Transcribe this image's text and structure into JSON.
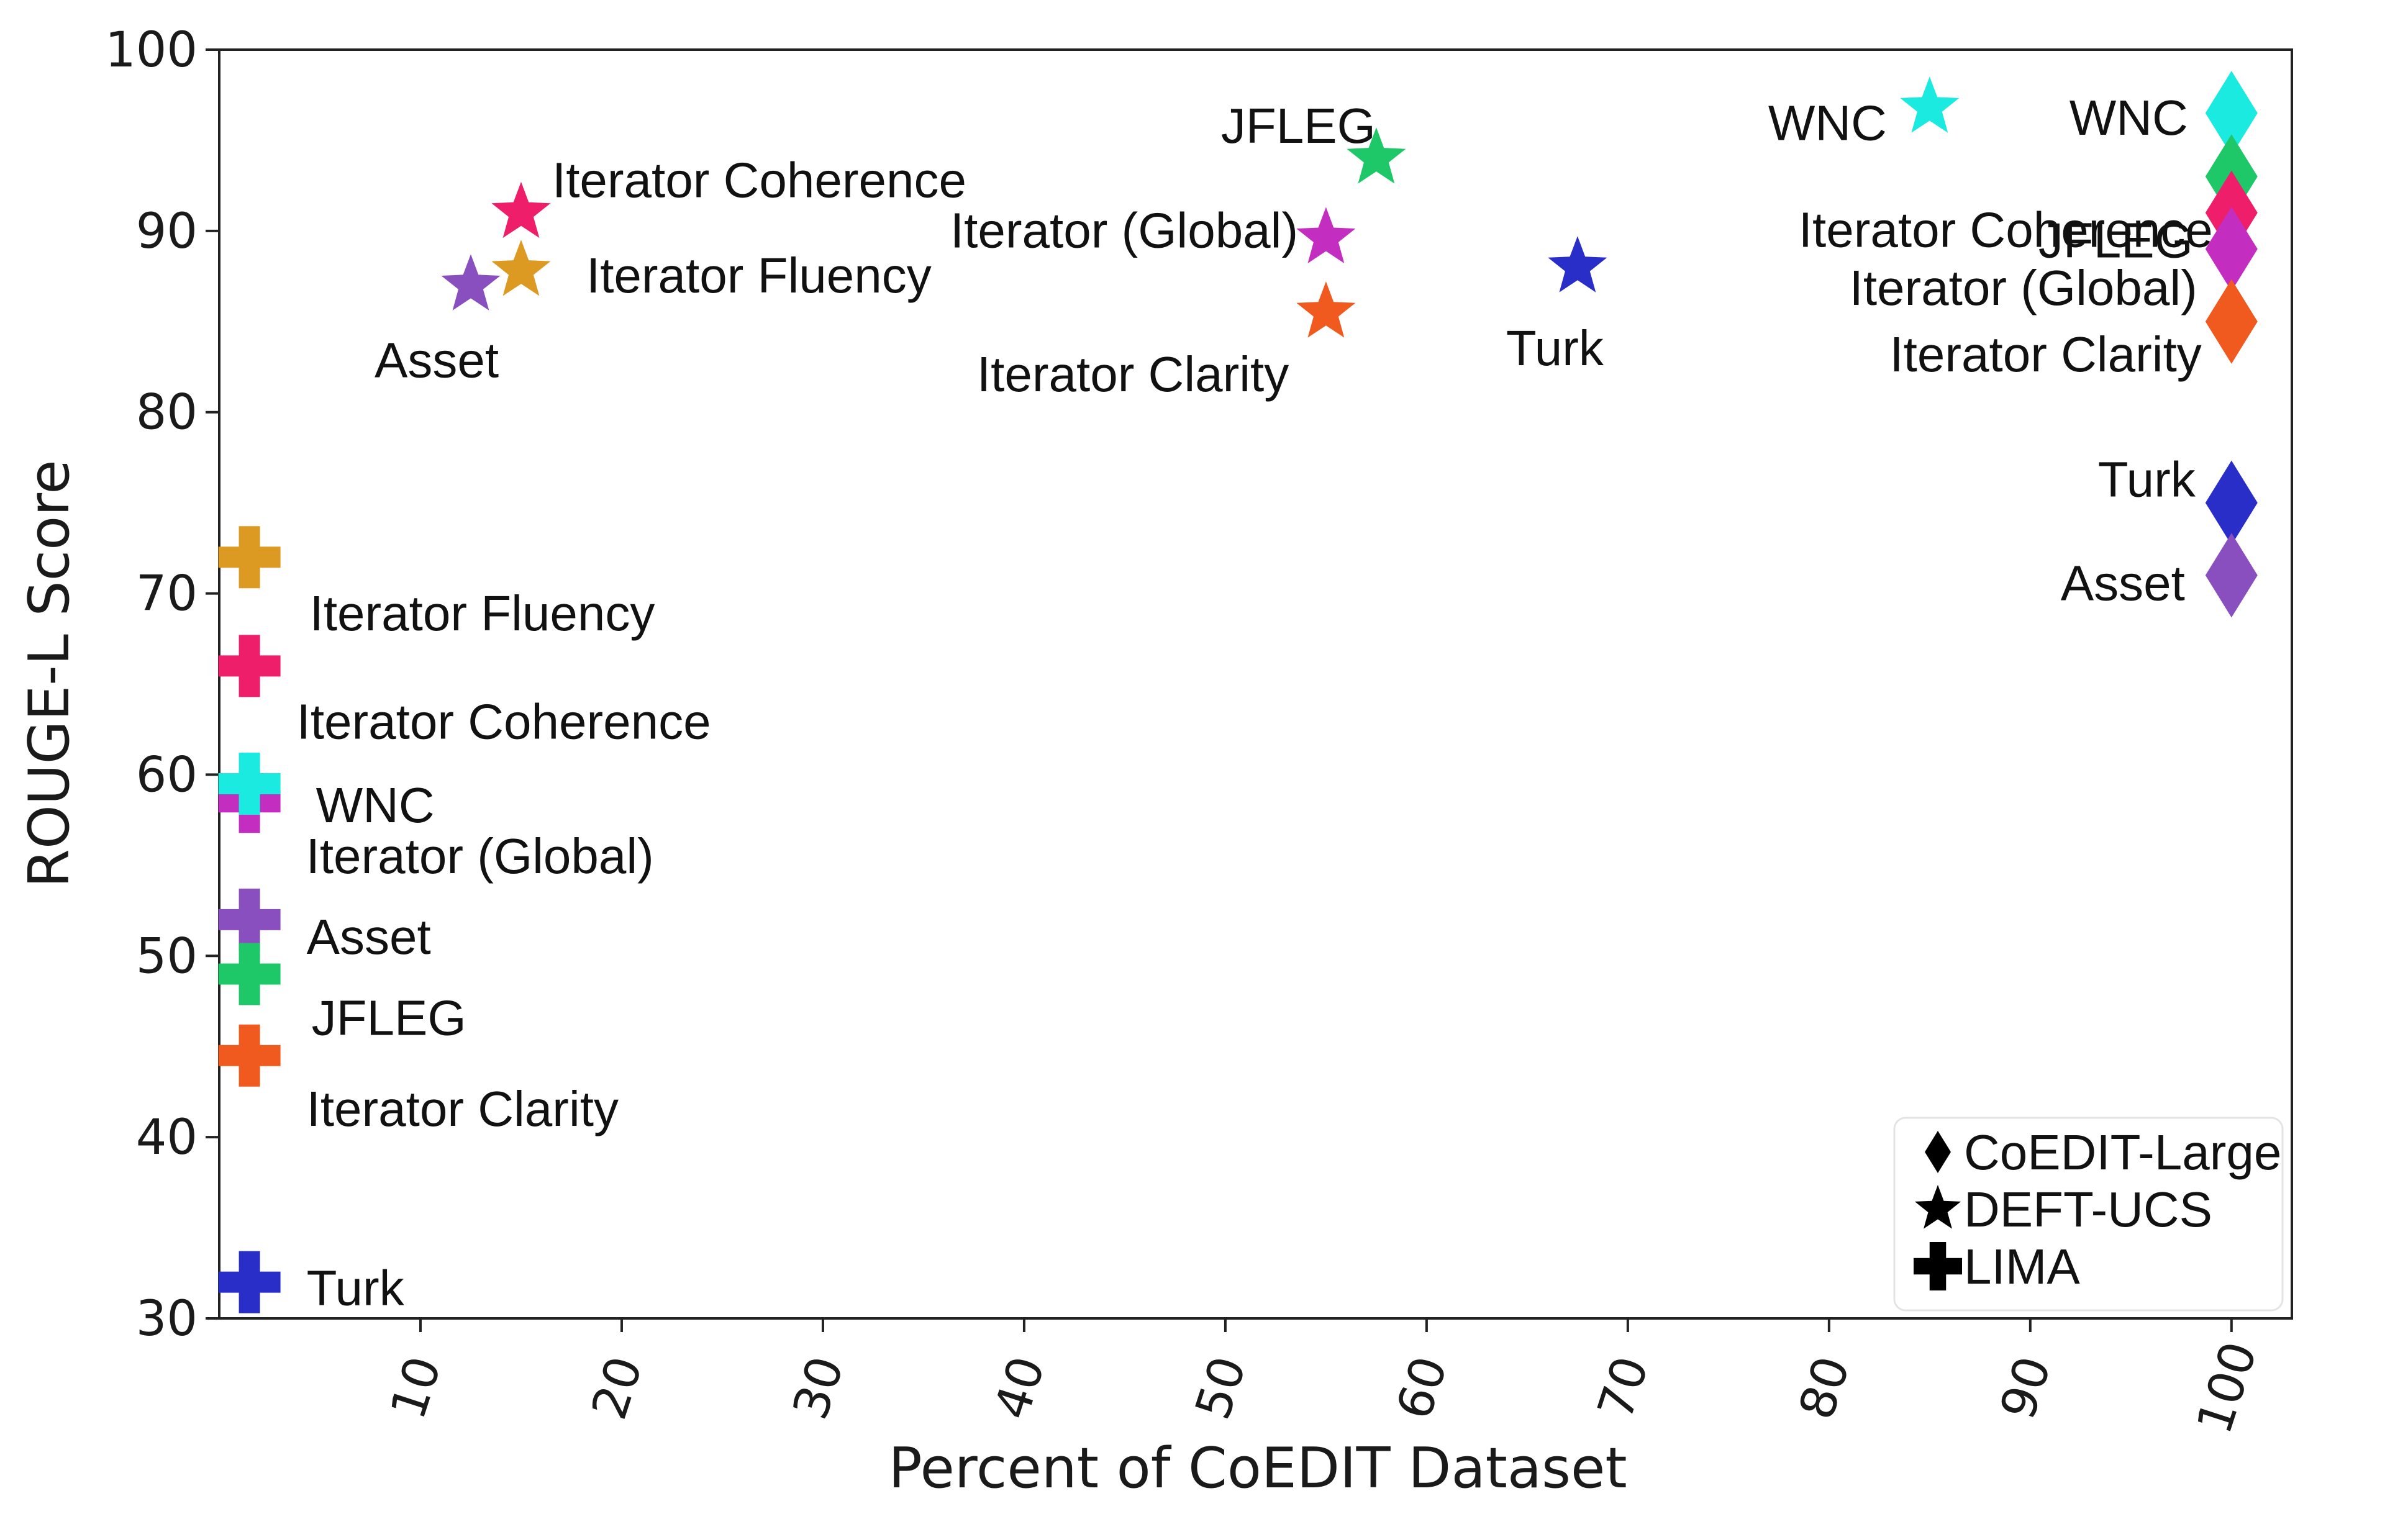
{
  "chart_data": {
    "type": "scatter",
    "title": "",
    "xlabel": "Percent of CoEDIT Dataset",
    "ylabel": "ROUGE-L Score",
    "xlim": [
      0,
      103
    ],
    "ylim": [
      30,
      100
    ],
    "xticks": [
      10,
      20,
      30,
      40,
      50,
      60,
      70,
      80,
      90,
      100
    ],
    "yticks": [
      30,
      40,
      50,
      60,
      70,
      80,
      90,
      100
    ],
    "colors": {
      "Asset": "#8a4fbf",
      "Iterator Coherence": "#ee1e6b",
      "Iterator Fluency": "#dd9a22",
      "JFLEG": "#1ec868",
      "Iterator (Global)": "#c42ec0",
      "Iterator Clarity": "#f05a1e",
      "Turk": "#2a2ec8",
      "WNC": "#1aeae0"
    },
    "series": [
      {
        "name": "CoEDIT-Large",
        "marker": "diamond",
        "points": [
          {
            "label": "WNC",
            "x": 100,
            "y": 96.5
          },
          {
            "label": "JFLEG",
            "x": 100,
            "y": 93
          },
          {
            "label": "Iterator Coherence",
            "x": 100,
            "y": 91
          },
          {
            "label": "Iterator (Global)",
            "x": 100,
            "y": 89
          },
          {
            "label": "Iterator Clarity",
            "x": 100,
            "y": 85
          },
          {
            "label": "Turk",
            "x": 100,
            "y": 75
          },
          {
            "label": "Asset",
            "x": 100,
            "y": 71
          }
        ]
      },
      {
        "name": "DEFT-UCS",
        "marker": "star",
        "points": [
          {
            "label": "Asset",
            "x": 12.5,
            "y": 87
          },
          {
            "label": "Iterator Coherence",
            "x": 15,
            "y": 91
          },
          {
            "label": "Iterator Fluency",
            "x": 15,
            "y": 87.8
          },
          {
            "label": "JFLEG",
            "x": 57.5,
            "y": 94
          },
          {
            "label": "Iterator (Global)",
            "x": 55,
            "y": 89.6
          },
          {
            "label": "Iterator Clarity",
            "x": 55,
            "y": 85.5
          },
          {
            "label": "Turk",
            "x": 67.5,
            "y": 88
          },
          {
            "label": "WNC",
            "x": 85,
            "y": 96.8
          }
        ]
      },
      {
        "name": "LIMA",
        "marker": "plus",
        "points": [
          {
            "label": "Iterator Fluency",
            "x": 1.5,
            "y": 72
          },
          {
            "label": "Iterator Coherence",
            "x": 1.5,
            "y": 66
          },
          {
            "label": "Iterator (Global)",
            "x": 1.5,
            "y": 58.5
          },
          {
            "label": "WNC",
            "x": 1.5,
            "y": 59.5
          },
          {
            "label": "Asset",
            "x": 1.5,
            "y": 52
          },
          {
            "label": "JFLEG",
            "x": 1.5,
            "y": 49
          },
          {
            "label": "Iterator Clarity",
            "x": 1.5,
            "y": 44.5
          },
          {
            "label": "Turk",
            "x": 1.5,
            "y": 32
          }
        ]
      }
    ],
    "legend": {
      "placement": "bottom-right",
      "entries": [
        "CoEDIT-Large",
        "DEFT-UCS",
        "LIMA"
      ]
    }
  }
}
